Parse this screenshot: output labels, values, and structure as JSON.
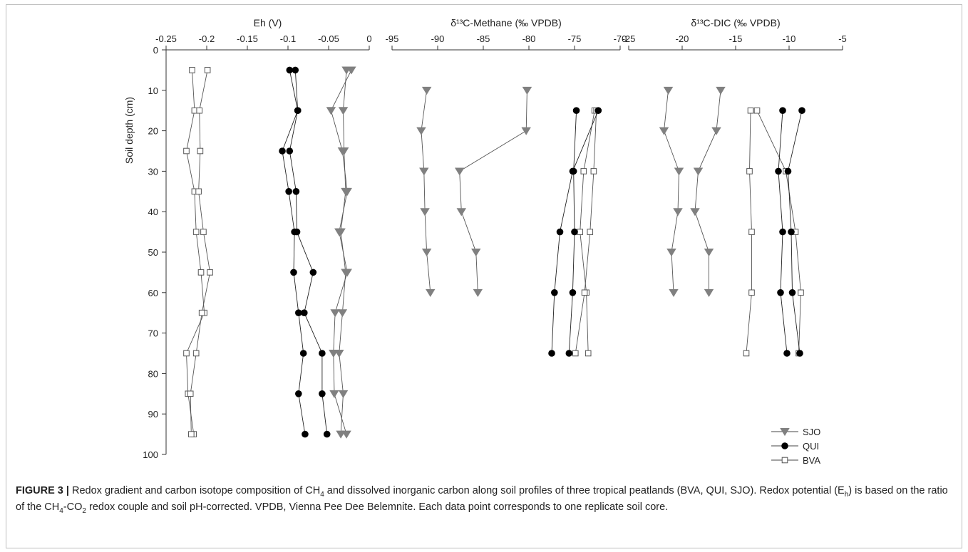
{
  "chart_data": {
    "type": "scatter",
    "y_axis": {
      "label": "Soil depth (cm)",
      "range": [
        0,
        100
      ],
      "ticks": [
        0,
        10,
        20,
        30,
        40,
        50,
        60,
        70,
        80,
        90,
        100
      ],
      "inverted": true
    },
    "legend": {
      "placement": "bottom-right",
      "entries": [
        {
          "name": "SJO",
          "marker": "triangle-down",
          "color": "#808080"
        },
        {
          "name": "QUI",
          "marker": "circle",
          "color": "#000000"
        },
        {
          "name": "BVA",
          "marker": "square-open",
          "color": "#808080"
        }
      ]
    },
    "panels": [
      {
        "id": "eh",
        "xlabel": "Eh (V)",
        "x_range": [
          -0.25,
          0
        ],
        "x_ticks": [
          -0.25,
          -0.2,
          -0.15,
          -0.1,
          -0.05,
          0
        ],
        "x_tick_labels": [
          "-0.25",
          "-0.2",
          "-0.15",
          "-0.1",
          "-0.05",
          "0"
        ],
        "series": [
          {
            "name": "SJO",
            "profiles": [
              [
                [
                  -0.028,
                  5
                ],
                [
                  -0.032,
                  15
                ],
                [
                  -0.031,
                  25
                ],
                [
                  -0.029,
                  35
                ],
                [
                  -0.035,
                  45
                ],
                [
                  -0.029,
                  55
                ],
                [
                  -0.033,
                  65
                ],
                [
                  -0.037,
                  75
                ],
                [
                  -0.032,
                  85
                ],
                [
                  -0.035,
                  95
                ]
              ],
              [
                [
                  -0.022,
                  5
                ],
                [
                  -0.047,
                  15
                ],
                [
                  -0.033,
                  25
                ],
                [
                  -0.027,
                  35
                ],
                [
                  -0.037,
                  45
                ],
                [
                  -0.027,
                  55
                ],
                [
                  -0.042,
                  65
                ],
                [
                  -0.044,
                  75
                ],
                [
                  -0.043,
                  85
                ],
                [
                  -0.028,
                  95
                ]
              ]
            ]
          },
          {
            "name": "QUI",
            "profiles": [
              [
                [
                  -0.098,
                  5
                ],
                [
                  -0.088,
                  15
                ],
                [
                  -0.107,
                  25
                ],
                [
                  -0.099,
                  35
                ],
                [
                  -0.092,
                  45
                ],
                [
                  -0.093,
                  55
                ],
                [
                  -0.087,
                  65
                ],
                [
                  -0.081,
                  75
                ],
                [
                  -0.087,
                  85
                ],
                [
                  -0.079,
                  95
                ]
              ],
              [
                [
                  -0.091,
                  5
                ],
                [
                  -0.088,
                  15
                ],
                [
                  -0.098,
                  25
                ],
                [
                  -0.09,
                  35
                ],
                [
                  -0.089,
                  45
                ],
                [
                  -0.069,
                  55
                ],
                [
                  -0.08,
                  65
                ],
                [
                  -0.058,
                  75
                ],
                [
                  -0.058,
                  85
                ],
                [
                  -0.052,
                  95
                ]
              ]
            ]
          },
          {
            "name": "BVA",
            "profiles": [
              [
                [
                  -0.218,
                  5
                ],
                [
                  -0.215,
                  15
                ],
                [
                  -0.225,
                  25
                ],
                [
                  -0.215,
                  35
                ],
                [
                  -0.213,
                  45
                ],
                [
                  -0.207,
                  55
                ],
                [
                  -0.203,
                  65
                ],
                [
                  -0.225,
                  75
                ],
                [
                  -0.223,
                  85
                ],
                [
                  -0.216,
                  95
                ]
              ],
              [
                [
                  -0.199,
                  5
                ],
                [
                  -0.209,
                  15
                ],
                [
                  -0.208,
                  25
                ],
                [
                  -0.21,
                  35
                ],
                [
                  -0.204,
                  45
                ],
                [
                  -0.196,
                  55
                ],
                [
                  -0.206,
                  65
                ],
                [
                  -0.213,
                  75
                ],
                [
                  -0.22,
                  85
                ],
                [
                  -0.219,
                  95
                ]
              ]
            ]
          }
        ]
      },
      {
        "id": "methane",
        "xlabel": "δ¹³C-Methane (‰ VPDB)",
        "x_range": [
          -95,
          -70
        ],
        "x_ticks": [
          -95,
          -90,
          -85,
          -80,
          -75,
          -70
        ],
        "x_tick_labels": [
          "-95",
          "-90",
          "-85",
          "-80",
          "-75",
          "-70"
        ],
        "series": [
          {
            "name": "SJO",
            "profiles": [
              [
                [
                  -91.2,
                  10
                ],
                [
                  -91.8,
                  20
                ],
                [
                  -91.5,
                  30
                ],
                [
                  -91.4,
                  40
                ],
                [
                  -91.2,
                  50
                ],
                [
                  -90.8,
                  60
                ]
              ],
              [
                [
                  -80.2,
                  10
                ],
                [
                  -80.3,
                  20
                ],
                [
                  -87.6,
                  30
                ],
                [
                  -87.4,
                  40
                ],
                [
                  -85.8,
                  50
                ],
                [
                  -85.6,
                  60
                ]
              ]
            ]
          },
          {
            "name": "QUI",
            "profiles": [
              [
                [
                  -74.8,
                  15
                ],
                [
                  -75.1,
                  30
                ],
                [
                  -75.0,
                  45
                ],
                [
                  -75.2,
                  60
                ],
                [
                  -75.6,
                  75
                ]
              ],
              [
                [
                  -72.4,
                  15
                ],
                [
                  -75.2,
                  30
                ],
                [
                  -76.6,
                  45
                ],
                [
                  -77.2,
                  60
                ],
                [
                  -77.5,
                  75
                ]
              ]
            ]
          },
          {
            "name": "BVA",
            "profiles": [
              [
                [
                  -72.8,
                  15
                ],
                [
                  -74.0,
                  30
                ],
                [
                  -74.4,
                  45
                ],
                [
                  -73.7,
                  60
                ],
                [
                  -73.5,
                  75
                ]
              ],
              [
                [
                  -72.6,
                  15
                ],
                [
                  -72.9,
                  30
                ],
                [
                  -73.3,
                  45
                ],
                [
                  -73.9,
                  60
                ],
                [
                  -74.9,
                  75
                ]
              ]
            ]
          }
        ]
      },
      {
        "id": "dic",
        "xlabel": "δ¹³C-DIC (‰ VPDB)",
        "x_range": [
          -25,
          -5
        ],
        "x_ticks": [
          -25,
          -20,
          -15,
          -10,
          -5
        ],
        "x_tick_labels": [
          "-25",
          "-20",
          "-15",
          "-10",
          "-5"
        ],
        "series": [
          {
            "name": "SJO",
            "profiles": [
              [
                [
                  -21.3,
                  10
                ],
                [
                  -21.7,
                  20
                ],
                [
                  -20.3,
                  30
                ],
                [
                  -20.4,
                  40
                ],
                [
                  -21.0,
                  50
                ],
                [
                  -20.8,
                  60
                ]
              ],
              [
                [
                  -16.4,
                  10
                ],
                [
                  -16.8,
                  20
                ],
                [
                  -18.5,
                  30
                ],
                [
                  -18.8,
                  40
                ],
                [
                  -17.5,
                  50
                ],
                [
                  -17.5,
                  60
                ]
              ]
            ]
          },
          {
            "name": "QUI",
            "profiles": [
              [
                [
                  -10.6,
                  15
                ],
                [
                  -11.0,
                  30
                ],
                [
                  -10.6,
                  45
                ],
                [
                  -10.8,
                  60
                ],
                [
                  -10.2,
                  75
                ]
              ],
              [
                [
                  -8.8,
                  15
                ],
                [
                  -10.1,
                  30
                ],
                [
                  -9.8,
                  45
                ],
                [
                  -9.7,
                  60
                ],
                [
                  -9.0,
                  75
                ]
              ]
            ]
          },
          {
            "name": "BVA",
            "profiles": [
              [
                [
                  -13.6,
                  15
                ],
                [
                  -13.7,
                  30
                ],
                [
                  -13.5,
                  45
                ],
                [
                  -13.5,
                  60
                ],
                [
                  -14.0,
                  75
                ]
              ],
              [
                [
                  -13.0,
                  15
                ],
                [
                  -10.3,
                  30
                ],
                [
                  -9.4,
                  45
                ],
                [
                  -8.9,
                  60
                ],
                [
                  -9.1,
                  75
                ]
              ]
            ]
          }
        ]
      }
    ]
  },
  "caption": {
    "label": "FIGURE 3 |",
    "part1": " Redox gradient and carbon isotope composition of CH",
    "sub1": "4",
    "part2": " and dissolved inorganic carbon along soil profiles of three tropical peatlands (BVA, QUI, SJO). Redox potential (E",
    "sub2": "h",
    "part3": ") is based on the ratio of the CH",
    "sub3": "4",
    "part4": "-CO",
    "sub4": "2",
    "part5": " redox couple and soil pH-corrected. VPDB, Vienna Pee Dee Belemnite. Each data point corresponds to one replicate soil core."
  }
}
